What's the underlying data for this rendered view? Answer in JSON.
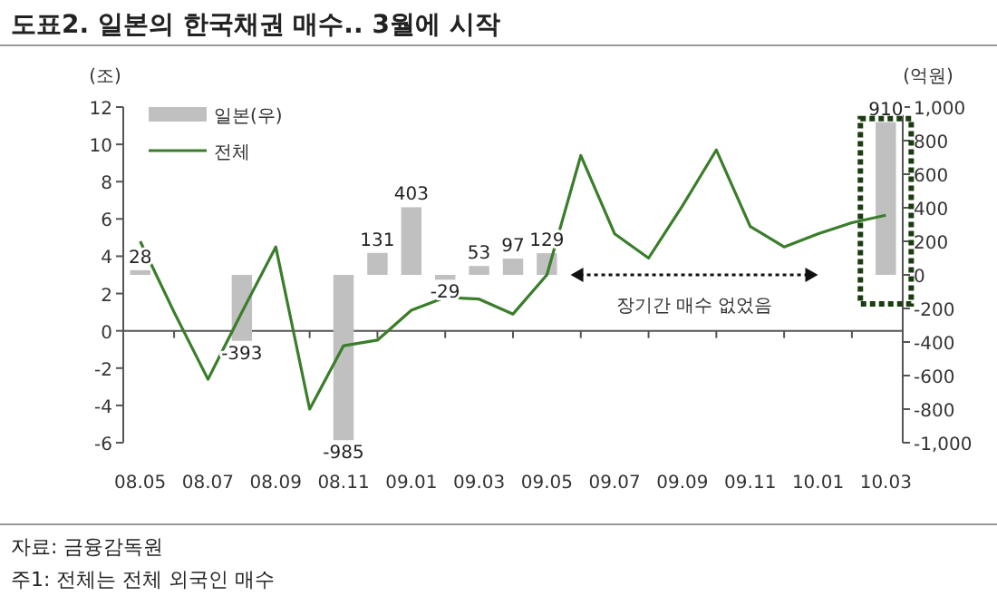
{
  "chart_data": {
    "type": "bar",
    "title": "도표2. 일본의 한국채권 매수.. 3월에 시작",
    "categories": [
      "08.05",
      null,
      "08.07",
      null,
      "08.09",
      null,
      "08.11",
      null,
      "09.01",
      null,
      "09.03",
      null,
      "09.05",
      null,
      "09.07",
      null,
      "09.09",
      null,
      "09.11",
      null,
      "10.01",
      null,
      "10.03"
    ],
    "series": [
      {
        "name": "일본(우)",
        "type": "bar",
        "axis": "y2",
        "color": "#c0c0c0",
        "values": [
          28,
          null,
          null,
          -393,
          null,
          null,
          -985,
          131,
          403,
          -29,
          53,
          97,
          129,
          null,
          null,
          null,
          null,
          null,
          null,
          null,
          null,
          null,
          910
        ],
        "value_labels": [
          "28",
          null,
          null,
          "-393",
          null,
          null,
          "-985",
          "131",
          "403",
          "-29",
          "53",
          "97",
          "129",
          null,
          null,
          null,
          null,
          null,
          null,
          null,
          null,
          null,
          "910"
        ]
      },
      {
        "name": "전체",
        "type": "line",
        "color": "#3a7d2a",
        "values": [
          4.8,
          1.0,
          -2.6,
          1.0,
          4.5,
          -4.2,
          -0.8,
          -0.5,
          1.1,
          1.8,
          1.7,
          0.9,
          3.0,
          9.4,
          5.2,
          3.9,
          6.7,
          9.7,
          5.6,
          4.5,
          5.2,
          5.8,
          6.2
        ]
      }
    ],
    "ylabel": "(조)",
    "y2label": "(억원)",
    "ylim": [
      -6,
      12
    ],
    "yticks": [
      -6,
      -4,
      -2,
      0,
      2,
      4,
      6,
      8,
      10,
      12
    ],
    "y2lim": [
      -1000,
      1000
    ],
    "y2ticks": [
      {
        "value": -1000,
        "label": "-1,000"
      },
      -800,
      -600,
      -400,
      -200,
      0,
      200,
      400,
      600,
      800,
      {
        "value": 1000,
        "label": "1,000"
      }
    ],
    "legend": "top left",
    "annotations": [
      "장기간 매수 없었음",
      "자료: 금융감독원",
      "주1: 전체는 전체 외국인 매수"
    ]
  }
}
